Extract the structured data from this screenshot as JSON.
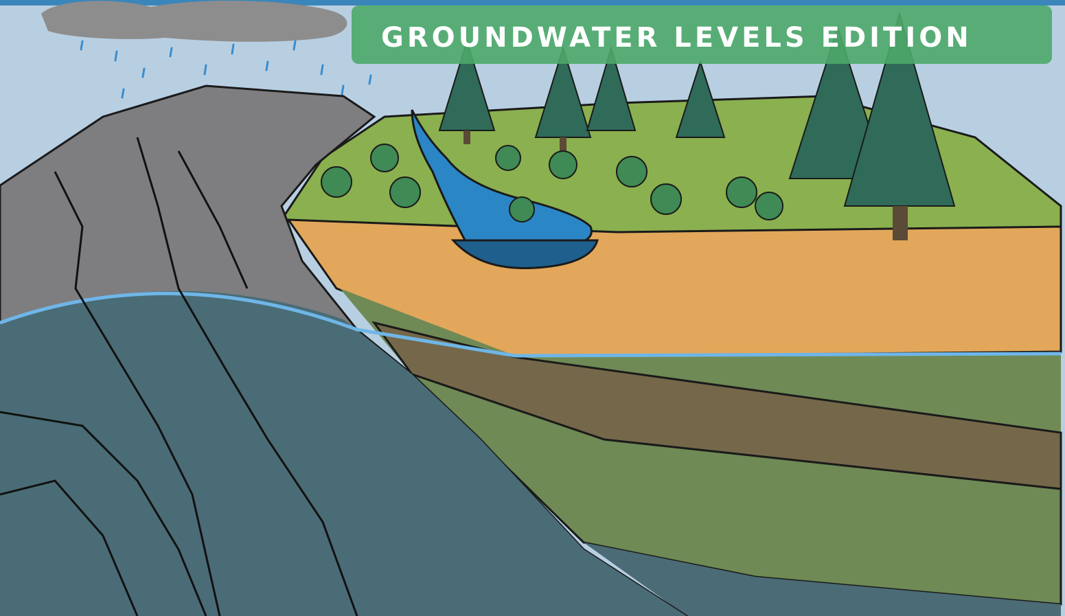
{
  "banner": {
    "title": "GROUNDWATER LEVELS EDITION"
  }
}
